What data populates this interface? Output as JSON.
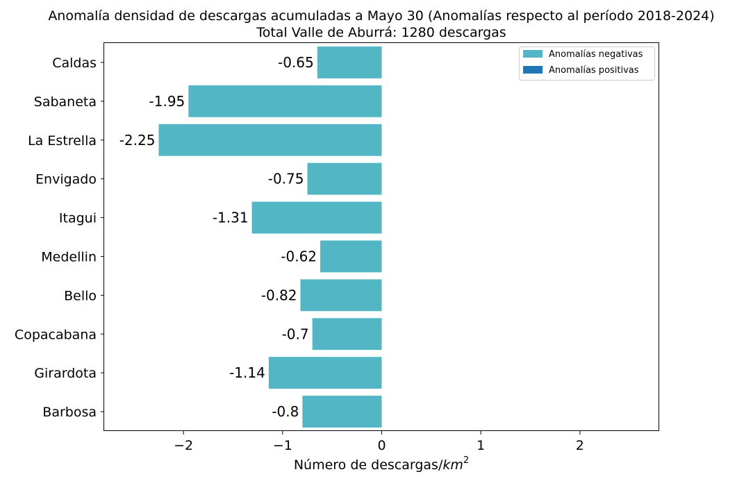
{
  "chart_data": {
    "type": "bar",
    "orientation": "horizontal",
    "title": "Anomalía densidad de descargas acumuladas a Mayo 30 (Anomalías respecto al período 2018-2024)",
    "subtitle": "Total Valle de Aburrá: 1280 descargas",
    "xlabel": "Número de descargas/",
    "xlabel_math": "km",
    "xlabel_sup": "2",
    "ylabel": "",
    "xlim": [
      -2.8,
      2.8
    ],
    "xticks": [
      -2,
      -1,
      0,
      1,
      2
    ],
    "xtick_labels": [
      "−2",
      "−1",
      "0",
      "1",
      "2"
    ],
    "categories": [
      "Caldas",
      "Sabaneta",
      "La Estrella",
      "Envigado",
      "Itagui",
      "Medellin",
      "Bello",
      "Copacabana",
      "Girardota",
      "Barbosa"
    ],
    "values": [
      -0.65,
      -1.95,
      -2.25,
      -0.75,
      -1.31,
      -0.62,
      -0.82,
      -0.7,
      -1.14,
      -0.8
    ],
    "value_labels": [
      "-0.65",
      "-1.95",
      "-2.25",
      "-0.75",
      "-1.31",
      "-0.62",
      "-0.82",
      "-0.7",
      "-1.14",
      "-0.8"
    ],
    "grid": false,
    "legend_position": "top-right",
    "legend": [
      {
        "label": "Anomalías negativas",
        "color": "#52b6c5"
      },
      {
        "label": "Anomalías positivas",
        "color": "#1f77b4"
      }
    ],
    "colors": {
      "negative": "#52b6c5",
      "positive": "#1f77b4"
    }
  }
}
